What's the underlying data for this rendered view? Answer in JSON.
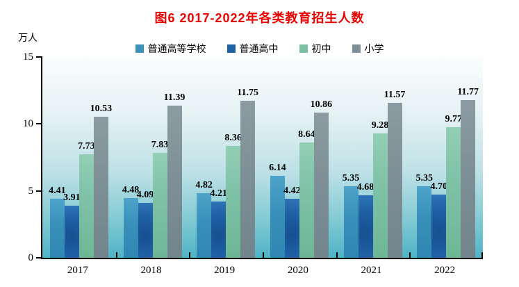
{
  "title": "图6  2017-2022年各类教育招生人数",
  "title_color": "#E60000",
  "chart_data": {
    "type": "bar",
    "title": "图6  2017-2022年各类教育招生人数",
    "ylabel": "万人",
    "xlabel": "",
    "ylim": [
      0,
      15
    ],
    "yticks": [
      0,
      5,
      10,
      15
    ],
    "grid": false,
    "legend_position": "top",
    "plot_background": "cyan gradient, white at top to #4FB3C6 at bottom",
    "categories": [
      "2017",
      "2018",
      "2019",
      "2020",
      "2021",
      "2022"
    ],
    "series": [
      {
        "name": "普通高等学校",
        "color": "#3A92BD",
        "values": [
          4.41,
          4.48,
          4.82,
          6.14,
          5.35,
          5.35
        ]
      },
      {
        "name": "普通高中",
        "color": "#1E61A5",
        "values": [
          3.91,
          4.09,
          4.21,
          4.42,
          4.68,
          4.7
        ]
      },
      {
        "name": "初中",
        "color": "#7CC0A4",
        "values": [
          7.73,
          7.83,
          8.36,
          8.64,
          9.28,
          9.77
        ]
      },
      {
        "name": "小学",
        "color": "#7E8F96",
        "values": [
          10.53,
          11.39,
          11.75,
          10.86,
          11.57,
          11.77
        ]
      }
    ]
  }
}
